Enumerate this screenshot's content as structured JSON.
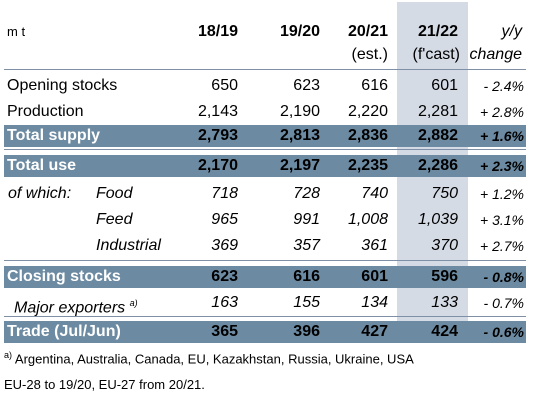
{
  "header": {
    "unit": "m t",
    "cols": [
      "18/19",
      "19/20",
      "20/21",
      "21/22"
    ],
    "col3_sub": "(est.)",
    "col4_sub": "(f'cast)",
    "change_top": "y/y",
    "change_bottom": "change"
  },
  "rows": {
    "opening": {
      "label": "Opening stocks",
      "v": [
        "650",
        "623",
        "616",
        "601"
      ],
      "ch": "- 2.4%"
    },
    "production": {
      "label": "Production",
      "v": [
        "2,143",
        "2,190",
        "2,220",
        "2,281"
      ],
      "ch": "+ 2.8%"
    },
    "total_supply": {
      "label": "Total supply",
      "v": [
        "2,793",
        "2,813",
        "2,836",
        "2,882"
      ],
      "ch": "+ 1.6%"
    },
    "total_use": {
      "label": "Total use",
      "v": [
        "2,170",
        "2,197",
        "2,235",
        "2,286"
      ],
      "ch": "+ 2.3%"
    },
    "food": {
      "prefix": "of which:",
      "label": "Food",
      "v": [
        "718",
        "728",
        "740",
        "750"
      ],
      "ch": "+ 1.2%"
    },
    "feed": {
      "label": "Feed",
      "v": [
        "965",
        "991",
        "1,008",
        "1,039"
      ],
      "ch": "+ 3.1%"
    },
    "industrial": {
      "label": "Industrial",
      "v": [
        "369",
        "357",
        "361",
        "370"
      ],
      "ch": "+ 2.7%"
    },
    "closing": {
      "label": "Closing stocks",
      "v": [
        "623",
        "616",
        "601",
        "596"
      ],
      "ch": "- 0.8%"
    },
    "major_exporters": {
      "label": "Major exporters",
      "sup": "a)",
      "v": [
        "163",
        "155",
        "134",
        "133"
      ],
      "ch": "- 0.7%"
    },
    "trade": {
      "label": "Trade (Jul/Jun)",
      "v": [
        "365",
        "396",
        "427",
        "424"
      ],
      "ch": "- 0.6%"
    }
  },
  "footnotes": {
    "a_marker": "a)",
    "a_text": "Argentina, Australia, Canada, EU, Kazakhstan, Russia, Ukraine, USA",
    "eu_text": "EU-28 to 19/20, EU-27 from 20/21."
  },
  "colors": {
    "bar": "#6c8aa1",
    "highlight": "#d5dbe5",
    "rule": "#7f8fa6"
  }
}
